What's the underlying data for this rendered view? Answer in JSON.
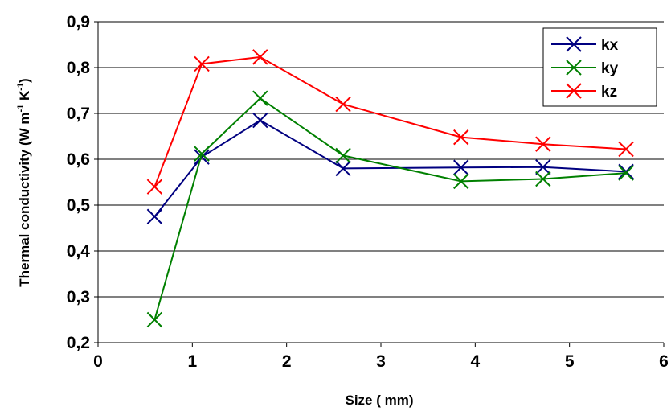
{
  "chart_data": {
    "type": "line",
    "title": "",
    "xlabel": "Size ( mm)",
    "ylabel_main": "Thermal conductivity (W m",
    "ylabel_exp1": "-1",
    "ylabel_mid": " K",
    "ylabel_exp2": "-1",
    "ylabel_end": ")",
    "xlim": [
      0,
      6
    ],
    "ylim": [
      0.2,
      0.9
    ],
    "x_ticks": [
      0,
      1,
      2,
      3,
      4,
      5,
      6
    ],
    "x_tick_labels": [
      "0",
      "1",
      "2",
      "3",
      "4",
      "5",
      "6"
    ],
    "y_ticks": [
      0.2,
      0.3,
      0.4,
      0.5,
      0.6,
      0.7,
      0.8,
      0.9
    ],
    "y_tick_labels": [
      "0,2",
      "0,3",
      "0,4",
      "0,5",
      "0,6",
      "0,7",
      "0,8",
      "0,9"
    ],
    "grid": "horizontal",
    "legend_position": "top-right",
    "x": [
      0.6,
      1.1,
      1.72,
      2.6,
      3.85,
      4.72,
      5.6
    ],
    "series": [
      {
        "name": "kx",
        "color": "#000080",
        "values": [
          0.475,
          0.605,
          0.685,
          0.58,
          0.582,
          0.583,
          0.573
        ]
      },
      {
        "name": "ky",
        "color": "#008000",
        "values": [
          0.25,
          0.612,
          0.733,
          0.608,
          0.552,
          0.557,
          0.57
        ]
      },
      {
        "name": "kz",
        "color": "#ff0000",
        "values": [
          0.54,
          0.808,
          0.823,
          0.72,
          0.648,
          0.633,
          0.622
        ]
      }
    ]
  }
}
